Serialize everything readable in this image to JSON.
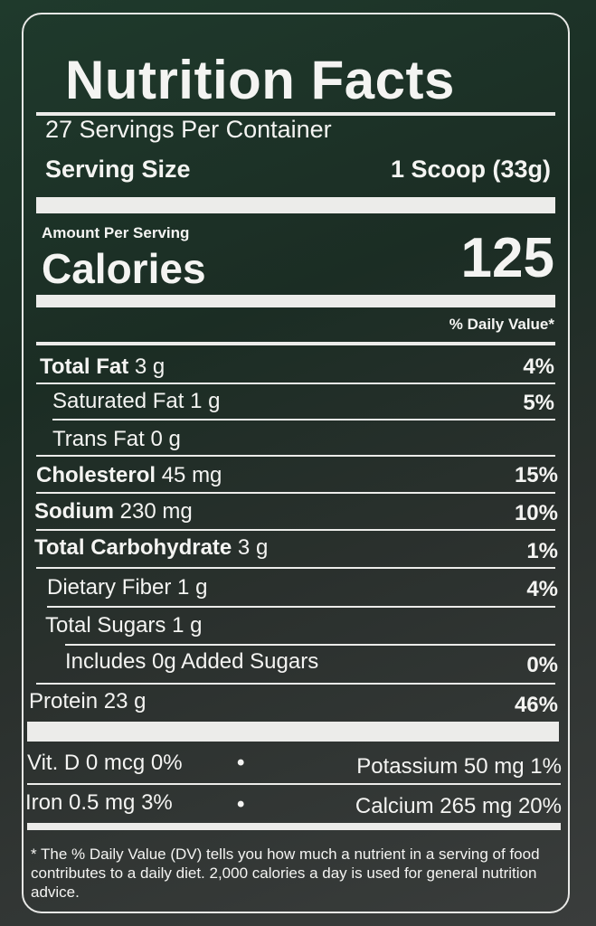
{
  "title": "Nutrition Facts",
  "servings": "27 Servings Per Container",
  "serving_size_label": "Serving Size",
  "serving_size_value": "1 Scoop (33g)",
  "amount_per_serving": "Amount Per Serving",
  "calories_label": "Calories",
  "calories_value": "125",
  "dv_header": "% Daily Value*",
  "nutrients": [
    {
      "name": "Total Fat",
      "amount": "3 g",
      "dv": "4%"
    },
    {
      "name": "Saturated Fat",
      "amount": "1 g",
      "dv": "5%"
    },
    {
      "name": "Trans Fat",
      "amount": "0 g",
      "dv": ""
    },
    {
      "name": "Cholesterol",
      "amount": "45 mg",
      "dv": "15%"
    },
    {
      "name": "Sodium",
      "amount": "230 mg",
      "dv": "10%"
    },
    {
      "name": "Total Carbohydrate",
      "amount": "3 g",
      "dv": "1%"
    },
    {
      "name": "Dietary Fiber",
      "amount": "1 g",
      "dv": "4%"
    },
    {
      "name": "Total Sugars",
      "amount": "1 g",
      "dv": ""
    },
    {
      "name": "Includes 0g Added Sugars",
      "amount": "",
      "dv": "0%"
    },
    {
      "name": "Protein",
      "amount": "23 g",
      "dv": "46%"
    }
  ],
  "vitamins": [
    {
      "left": "Vit. D 0 mcg 0%",
      "right": "Potassium 50 mg 1%"
    },
    {
      "left": "Iron 0.5 mg  3%",
      "right": "Calcium 265 mg 20%"
    }
  ],
  "bullet": "•",
  "footnote": "* The % Daily Value (DV) tells you how much a nutrient in a serving of food contributes to a daily diet. 2,000 calories a day is used for general nutrition advice."
}
